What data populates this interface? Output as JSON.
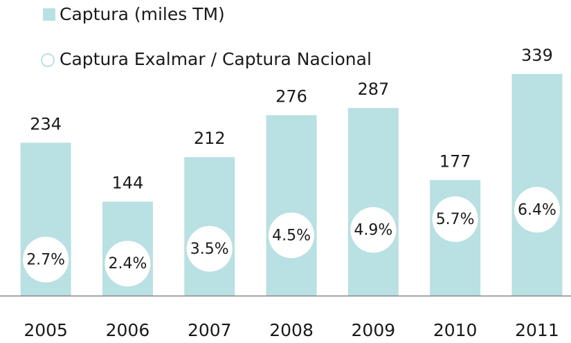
{
  "chart_data": {
    "type": "bar",
    "categories": [
      "2005",
      "2006",
      "2007",
      "2008",
      "2009",
      "2010",
      "2011"
    ],
    "series": [
      {
        "name": "Captura (miles TM)",
        "color": "#b9e0e2",
        "values": [
          234,
          144,
          212,
          276,
          287,
          177,
          339
        ]
      },
      {
        "name": "Captura Exalmar / Captura Nacional",
        "type": "circle",
        "axis": "y2",
        "color": "#ffffff",
        "values": [
          2.7,
          2.4,
          3.5,
          4.5,
          4.9,
          5.7,
          6.4
        ],
        "value_labels": [
          "2.7%",
          "2.4%",
          "3.5%",
          "4.5%",
          "4.9%",
          "5.7%",
          "6.4%"
        ]
      }
    ],
    "ylim": [
      0,
      360
    ],
    "y2lim": [
      0,
      17.5
    ]
  }
}
